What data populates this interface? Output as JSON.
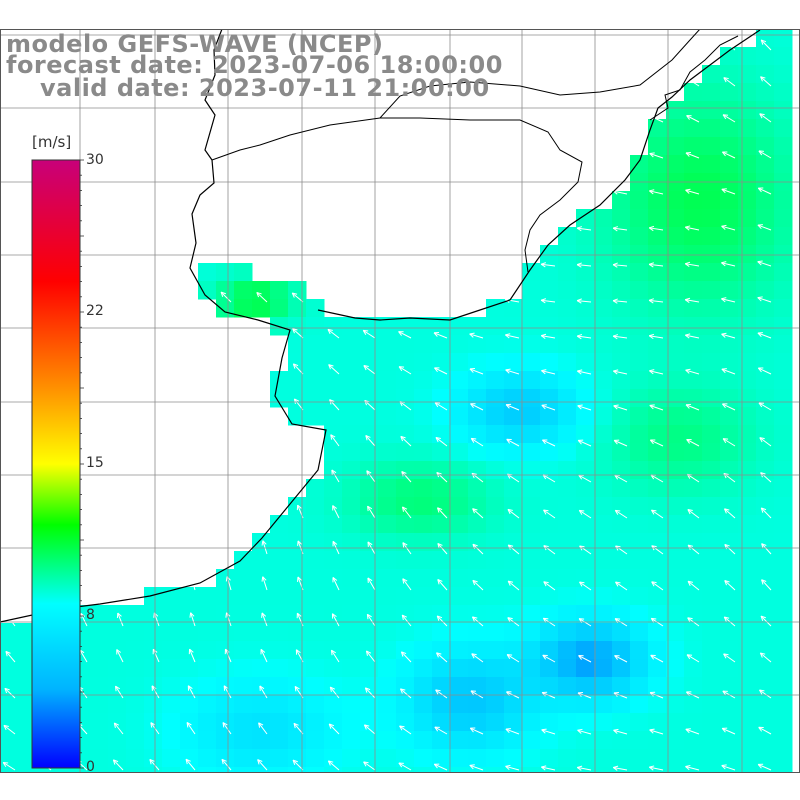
{
  "title": {
    "model": "modelo GEFS-WAVE (NCEP)",
    "forecast": "forecast date: 2023-07-06 18:00:00",
    "valid": "valid date: 2023-07-11 21:00:00"
  },
  "colorbar": {
    "units": "[m/s]",
    "ticks": [
      "30",
      "22",
      "15",
      "8",
      "0"
    ],
    "tick_values": [
      30,
      22,
      15,
      8,
      0
    ],
    "min": 0,
    "max": 30,
    "stops": [
      "#0000ff",
      "#00b4ff",
      "#00ffff",
      "#00ff00",
      "#ffff00",
      "#ff8c00",
      "#ff0000",
      "#c8007a"
    ],
    "stop_values": [
      0,
      4,
      8,
      12,
      15,
      19,
      24,
      30
    ]
  },
  "colors": {
    "land": "#ffffff",
    "coast": "#000000",
    "grid": "#8c8c8c",
    "arrow": "#ffffff",
    "title": "#8a8a8a"
  }
}
